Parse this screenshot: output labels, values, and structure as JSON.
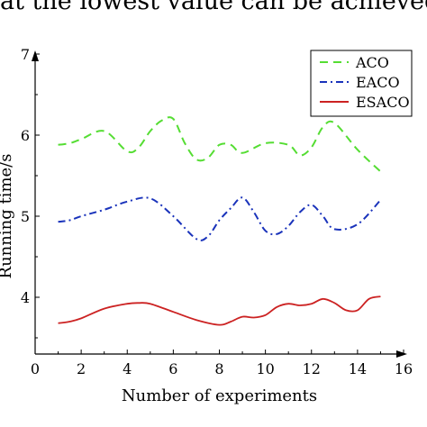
{
  "caption": "at the lowest value can be achieved using t",
  "chart_data": {
    "type": "line",
    "xlabel": "Number of experiments",
    "ylabel": "Running time/s",
    "xlim": [
      0,
      16
    ],
    "ylim": [
      3.3,
      7
    ],
    "xticks": [
      0,
      2,
      4,
      6,
      8,
      10,
      12,
      14,
      16
    ],
    "yticks": [
      4,
      5,
      6,
      7
    ],
    "legend_position": "top-right",
    "series": [
      {
        "name": "ACO",
        "color": "#55dd33",
        "style": "dashed",
        "x": [
          1,
          1.5,
          2,
          3,
          4,
          4.5,
          5,
          5.5,
          6,
          6.5,
          7,
          7.5,
          8,
          8.5,
          9,
          10,
          11,
          11.5,
          12,
          12.5,
          13,
          14,
          15
        ],
        "y": [
          5.88,
          5.9,
          5.95,
          6.05,
          5.8,
          5.85,
          6.05,
          6.18,
          6.2,
          5.9,
          5.7,
          5.72,
          5.88,
          5.88,
          5.78,
          5.9,
          5.88,
          5.75,
          5.85,
          6.1,
          6.15,
          5.82,
          5.55
        ]
      },
      {
        "name": "EACO",
        "color": "#1a33bb",
        "style": "dashdot",
        "x": [
          1,
          1.5,
          2,
          3,
          4,
          5,
          6,
          7,
          7.5,
          8,
          8.5,
          9,
          9.5,
          10,
          10.5,
          11,
          11.5,
          12,
          12.5,
          13,
          14,
          15
        ],
        "y": [
          4.93,
          4.95,
          5.0,
          5.08,
          5.18,
          5.22,
          5.0,
          4.72,
          4.75,
          4.95,
          5.1,
          5.23,
          5.05,
          4.82,
          4.78,
          4.88,
          5.05,
          5.14,
          5.0,
          4.84,
          4.9,
          5.2
        ]
      },
      {
        "name": "ESACO",
        "color": "#cc2222",
        "style": "solid",
        "x": [
          1,
          1.5,
          2,
          3,
          4,
          4.5,
          5,
          6,
          7,
          8,
          8.5,
          9,
          9.5,
          10,
          10.5,
          11,
          11.5,
          12,
          12.5,
          13,
          13.5,
          14,
          14.5,
          15
        ],
        "y": [
          3.68,
          3.7,
          3.74,
          3.86,
          3.92,
          3.93,
          3.92,
          3.82,
          3.72,
          3.66,
          3.7,
          3.76,
          3.75,
          3.78,
          3.88,
          3.92,
          3.9,
          3.92,
          3.98,
          3.93,
          3.84,
          3.84,
          3.98,
          4.01
        ]
      }
    ]
  }
}
